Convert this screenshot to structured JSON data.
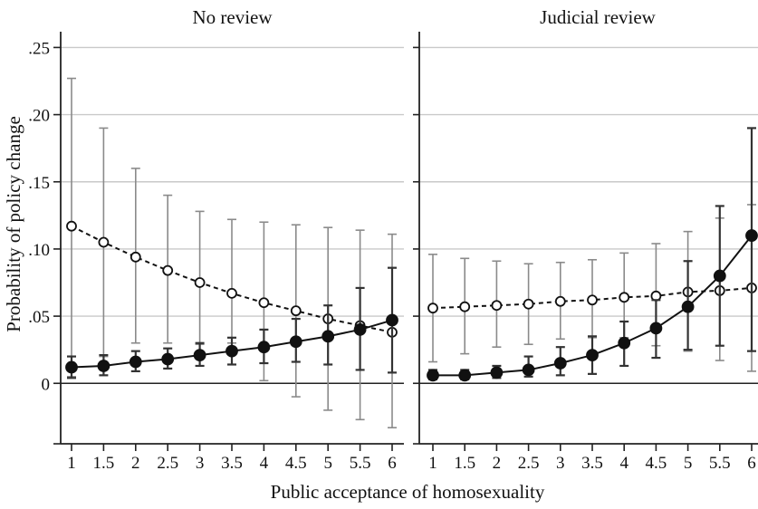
{
  "chart_data": {
    "type": "line",
    "ylabel": "Probability of policy change",
    "xlabel": "Public acceptance of homosexuality",
    "x": [
      1,
      1.5,
      2,
      2.5,
      3,
      3.5,
      4,
      4.5,
      5,
      5.5,
      6
    ],
    "x_tick_labels": [
      "1",
      "1.5",
      "2",
      "2.5",
      "3",
      "3.5",
      "4",
      "4.5",
      "5",
      "5.5",
      "6"
    ],
    "y_ticks": [
      0,
      0.05,
      0.1,
      0.15,
      0.2,
      0.25
    ],
    "y_tick_labels": [
      "0",
      ".05",
      ".10",
      ".15",
      ".20",
      ".25"
    ],
    "ylim": [
      -0.045,
      0.255
    ],
    "xlim": [
      0.9,
      6.1
    ],
    "grid": "horizontal",
    "panels": [
      {
        "title": "No review",
        "series": [
          {
            "style": "dashed-hollow",
            "values": [
              0.117,
              0.105,
              0.094,
              0.084,
              0.075,
              0.067,
              0.06,
              0.054,
              0.048,
              0.043,
              0.038
            ],
            "lower": [
              0.005,
              0.02,
              0.03,
              0.03,
              0.029,
              0.03,
              0.002,
              -0.01,
              -0.02,
              -0.027,
              -0.033
            ],
            "upper": [
              0.227,
              0.19,
              0.16,
              0.14,
              0.128,
              0.122,
              0.12,
              0.118,
              0.116,
              0.114,
              0.111
            ]
          },
          {
            "style": "solid-filled",
            "values": [
              0.012,
              0.013,
              0.016,
              0.018,
              0.021,
              0.024,
              0.027,
              0.031,
              0.035,
              0.04,
              0.047
            ],
            "lower": [
              0.004,
              0.006,
              0.009,
              0.011,
              0.013,
              0.014,
              0.015,
              0.016,
              0.014,
              0.01,
              0.008
            ],
            "upper": [
              0.02,
              0.021,
              0.024,
              0.026,
              0.03,
              0.034,
              0.04,
              0.048,
              0.058,
              0.071,
              0.086
            ]
          }
        ]
      },
      {
        "title": "Judicial review",
        "series": [
          {
            "style": "dashed-hollow",
            "values": [
              0.056,
              0.057,
              0.058,
              0.059,
              0.061,
              0.062,
              0.064,
              0.065,
              0.068,
              0.069,
              0.071
            ],
            "lower": [
              0.016,
              0.022,
              0.027,
              0.029,
              0.033,
              0.034,
              0.034,
              0.028,
              0.024,
              0.017,
              0.009
            ],
            "upper": [
              0.096,
              0.093,
              0.091,
              0.089,
              0.09,
              0.092,
              0.097,
              0.104,
              0.113,
              0.123,
              0.133
            ]
          },
          {
            "style": "solid-filled",
            "values": [
              0.006,
              0.006,
              0.008,
              0.01,
              0.015,
              0.021,
              0.03,
              0.041,
              0.057,
              0.08,
              0.11
            ],
            "lower": [
              0.003,
              0.003,
              0.004,
              0.005,
              0.006,
              0.007,
              0.013,
              0.019,
              0.025,
              0.028,
              0.024
            ],
            "upper": [
              0.01,
              0.01,
              0.013,
              0.02,
              0.027,
              0.035,
              0.046,
              0.062,
              0.091,
              0.132,
              0.19
            ]
          }
        ]
      }
    ]
  }
}
